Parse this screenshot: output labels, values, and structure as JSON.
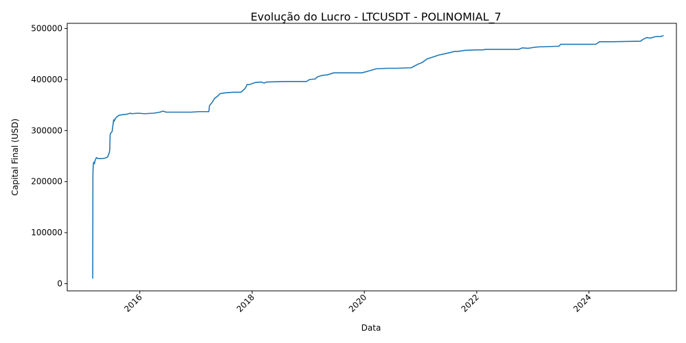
{
  "chart_data": {
    "type": "line",
    "title": "Evolução do Lucro - LTCUSDT - POLINOMIAL_7",
    "xlabel": "Data",
    "ylabel": "Capital Final (USD)",
    "xlim": [
      "2014-09-16",
      "2025-07-23"
    ],
    "ylim": [
      -14000,
      510000
    ],
    "x_ticks": [
      "2016",
      "2018",
      "2020",
      "2022",
      "2024"
    ],
    "y_ticks": [
      0,
      100000,
      200000,
      300000,
      400000,
      500000
    ],
    "y_tick_labels": [
      "0",
      "100000",
      "200000",
      "300000",
      "400000",
      "500000"
    ],
    "grid": false,
    "series": [
      {
        "color": "#1f77b4",
        "x": [
          "2015-03-01",
          "2015-03-02",
          "2015-03-04",
          "2015-03-07",
          "2015-03-12",
          "2015-03-15",
          "2015-03-20",
          "2015-03-25",
          "2015-04-05",
          "2015-05-01",
          "2015-05-20",
          "2015-06-05",
          "2015-06-15",
          "2015-06-20",
          "2015-06-22",
          "2015-06-28",
          "2015-07-05",
          "2015-07-15",
          "2015-07-18",
          "2015-07-25",
          "2015-08-05",
          "2015-08-20",
          "2015-09-10",
          "2015-10-10",
          "2015-11-01",
          "2015-11-10",
          "2015-12-20",
          "2016-02-01",
          "2016-04-01",
          "2016-05-10",
          "2016-06-01",
          "2016-06-20",
          "2016-09-01",
          "2016-12-01",
          "2017-01-20",
          "2017-02-20",
          "2017-03-25",
          "2017-03-30",
          "2017-04-10",
          "2017-04-20",
          "2017-05-01",
          "2017-05-20",
          "2017-06-05",
          "2017-06-20",
          "2017-07-15",
          "2017-09-01",
          "2017-10-20",
          "2017-11-15",
          "2017-11-25",
          "2017-11-28",
          "2017-12-15",
          "2018-01-10",
          "2018-01-20",
          "2018-03-01",
          "2018-03-20",
          "2018-04-05",
          "2018-08-01",
          "2018-12-01",
          "2018-12-20",
          "2019-01-10",
          "2019-02-15",
          "2019-03-01",
          "2019-04-01",
          "2019-05-01",
          "2019-05-15",
          "2019-06-15",
          "2019-12-15",
          "2020-01-10",
          "2020-02-01",
          "2020-03-20",
          "2020-06-01",
          "2020-08-01",
          "2020-11-01",
          "2020-11-20",
          "2020-12-15",
          "2021-01-10",
          "2021-02-10",
          "2021-03-01",
          "2021-04-01",
          "2021-05-01",
          "2021-06-01",
          "2021-06-15",
          "2021-07-15",
          "2021-08-10",
          "2021-09-01",
          "2021-10-15",
          "2022-01-01",
          "2022-02-10",
          "2022-03-01",
          "2022-06-01",
          "2022-10-01",
          "2022-10-25",
          "2022-12-01",
          "2023-01-10",
          "2023-02-15",
          "2023-03-01",
          "2023-06-01",
          "2023-06-20",
          "2023-07-01",
          "2024-01-01",
          "2024-02-15",
          "2024-02-25",
          "2024-03-10",
          "2024-06-01",
          "2024-12-01",
          "2024-12-15",
          "2025-01-10",
          "2025-02-01",
          "2025-03-10",
          "2025-04-10",
          "2025-05-01"
        ],
        "values": [
          10000,
          213000,
          230000,
          238000,
          235000,
          240000,
          244000,
          247000,
          245000,
          245000,
          246000,
          248000,
          255000,
          263000,
          292000,
          296000,
          298000,
          321000,
          318000,
          323000,
          327000,
          330000,
          331000,
          332000,
          334000,
          333000,
          334000,
          333000,
          334000,
          336000,
          338000,
          336000,
          336000,
          336000,
          337000,
          337000,
          337000,
          349000,
          353000,
          357000,
          363000,
          367000,
          372000,
          373000,
          374000,
          375000,
          375000,
          382000,
          387000,
          390000,
          390000,
          393000,
          394000,
          395000,
          393000,
          395000,
          396000,
          396000,
          396000,
          400000,
          401000,
          405000,
          408000,
          409000,
          410000,
          413000,
          413000,
          415000,
          417000,
          421000,
          422000,
          422000,
          423000,
          426000,
          430000,
          433000,
          440000,
          442000,
          445000,
          448000,
          450000,
          451000,
          453000,
          455000,
          455000,
          457000,
          458000,
          458000,
          459000,
          459000,
          459000,
          462000,
          461000,
          463000,
          464000,
          464000,
          465000,
          465000,
          469000,
          469000,
          469000,
          471000,
          474000,
          474000,
          475000,
          478000,
          482000,
          481000,
          484000,
          484000,
          486000
        ]
      }
    ]
  }
}
